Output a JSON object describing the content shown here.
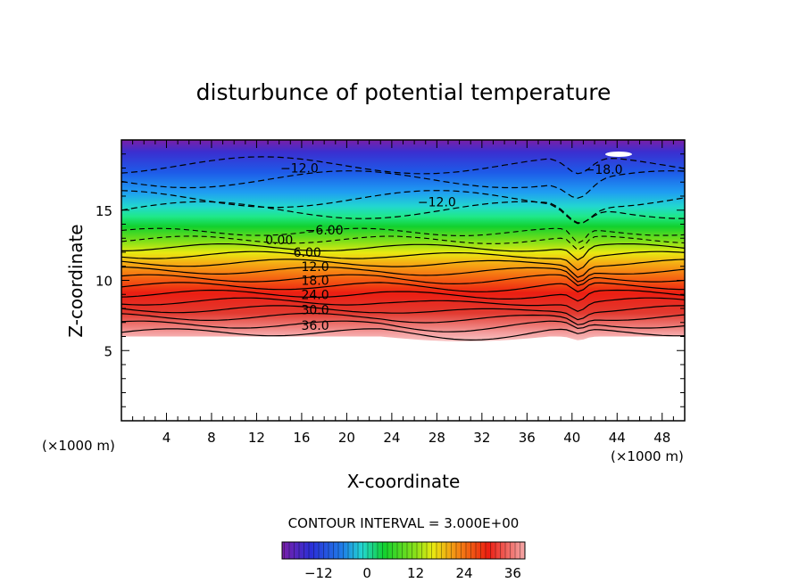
{
  "chart_data": {
    "type": "contour",
    "title": "disturbunce of potential temperature",
    "xlabel": "X-coordinate",
    "ylabel": "Z-coordinate",
    "x_unit_left": "(×1000 m)",
    "x_unit_right": "(×1000 m)",
    "xlim": [
      0,
      50
    ],
    "ylim": [
      0,
      20
    ],
    "x_ticks": [
      4,
      8,
      12,
      16,
      20,
      24,
      28,
      32,
      36,
      40,
      44,
      48
    ],
    "y_ticks": [
      5,
      10,
      15
    ],
    "contour_interval_text": "CONTOUR INTERVAL = 3.000E+00",
    "contour_interval": 3.0,
    "value_range": [
      -21,
      39
    ],
    "colorbar_ticks": [
      "−12",
      "0",
      "12",
      "24",
      "36"
    ],
    "colorbar_tick_values": [
      -12,
      0,
      12,
      24,
      36
    ],
    "contour_labels": [
      {
        "text": "−12.0",
        "x": 15.8,
        "z": 18.0
      },
      {
        "text": "−18.0",
        "x": 42.8,
        "z": 17.9
      },
      {
        "text": "−12.0",
        "x": 28.0,
        "z": 15.6
      },
      {
        "text": "−6.00",
        "x": 18.0,
        "z": 13.6
      },
      {
        "text": "0.00",
        "x": 14.0,
        "z": 12.9
      },
      {
        "text": "6.00",
        "x": 16.5,
        "z": 12.0
      },
      {
        "text": "12.0",
        "x": 17.2,
        "z": 11.0
      },
      {
        "text": "18.0",
        "x": 17.2,
        "z": 10.0
      },
      {
        "text": "24.0",
        "x": 17.2,
        "z": 9.0
      },
      {
        "text": "30.0",
        "x": 17.2,
        "z": 7.9
      },
      {
        "text": "36.0",
        "x": 17.2,
        "z": 6.8
      }
    ],
    "data_floor_z": 6.0,
    "grid": false
  }
}
